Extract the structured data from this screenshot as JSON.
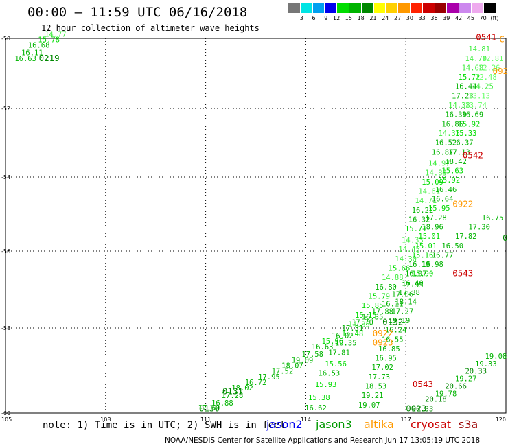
{
  "header": {
    "title": "00:00 – 11:59 UTC 06/16/2018",
    "subtitle": "12 hour collection of altimeter wave heights"
  },
  "colorbar": {
    "labels": [
      "3",
      "6",
      "9",
      "12",
      "15",
      "18",
      "21",
      "24",
      "27",
      "30",
      "33",
      "36",
      "39",
      "42",
      "45",
      "70",
      "(ft)"
    ],
    "colors": [
      "#777777",
      "#00e4e4",
      "#00a0f0",
      "#0000ee",
      "#00dd00",
      "#00b400",
      "#008800",
      "#ffff00",
      "#ffd000",
      "#ff9900",
      "#ff2200",
      "#cc0000",
      "#990000",
      "#aa00aa",
      "#cc88ee",
      "#eeaaee",
      "#000000"
    ]
  },
  "footer": {
    "note": "note: 1) Time is in UTC; 2) SWH is in feet",
    "satellites": [
      {
        "name": "jason2",
        "color": "#0000ee"
      },
      {
        "name": "jason3",
        "color": "#009900"
      },
      {
        "name": "altika",
        "color": "#ff9900"
      },
      {
        "name": "cryosat",
        "color": "#cc0000"
      },
      {
        "name": "s3a",
        "color": "#990000"
      }
    ],
    "credit": "NOAA/NESDIS Center for Satellite Applications and Research  Jun 17 13:05:19 UTC 2018"
  },
  "chart_data": {
    "type": "scatter",
    "title": "00:00 – 11:59 UTC 06/16/2018",
    "subtitle": "12 hour collection of altimeter wave heights",
    "xlim": [
      105,
      120
    ],
    "ylim": [
      -60,
      -50
    ],
    "x_ticks": [
      "105",
      "108",
      "111",
      "114",
      "117",
      "120"
    ],
    "y_ticks": [
      "-50",
      "-52",
      "-54",
      "-56",
      "-58",
      "-60"
    ],
    "grid": true,
    "points": [
      {
        "x": 105.6,
        "y": -50.6,
        "v": "16.63",
        "c": "#00b400"
      },
      {
        "x": 105.8,
        "y": -50.45,
        "v": "16.11",
        "c": "#00b400"
      },
      {
        "x": 106.0,
        "y": -50.25,
        "v": "16.68",
        "c": "#00b400"
      },
      {
        "x": 106.3,
        "y": -50.1,
        "v": "15.78",
        "c": "#00dd00"
      },
      {
        "x": 106.5,
        "y": -49.95,
        "v": "14.77",
        "c": "#44ee44"
      },
      {
        "x": 111.1,
        "y": -59.93,
        "v": "17.60",
        "c": "#00b400"
      },
      {
        "x": 111.5,
        "y": -59.8,
        "v": "16.88",
        "c": "#00b400"
      },
      {
        "x": 111.8,
        "y": -59.6,
        "v": "17.28",
        "c": "#00b400"
      },
      {
        "x": 112.1,
        "y": -59.4,
        "v": "18.02",
        "c": "#00b400"
      },
      {
        "x": 112.5,
        "y": -59.25,
        "v": "16.72",
        "c": "#00b400"
      },
      {
        "x": 112.9,
        "y": -59.1,
        "v": "17.95",
        "c": "#00b400"
      },
      {
        "x": 113.3,
        "y": -58.95,
        "v": "17.52",
        "c": "#00b400"
      },
      {
        "x": 113.6,
        "y": -58.8,
        "v": "18.07",
        "c": "#00b400"
      },
      {
        "x": 113.9,
        "y": -58.65,
        "v": "19.09",
        "c": "#00b400"
      },
      {
        "x": 114.2,
        "y": -58.5,
        "v": "17.58",
        "c": "#00b400"
      },
      {
        "x": 114.5,
        "y": -58.3,
        "v": "16.63",
        "c": "#00b400"
      },
      {
        "x": 114.8,
        "y": -58.15,
        "v": "15.96",
        "c": "#00dd00"
      },
      {
        "x": 115.1,
        "y": -58.0,
        "v": "16.02",
        "c": "#00b400"
      },
      {
        "x": 115.4,
        "y": -57.8,
        "v": "17.31",
        "c": "#00b400"
      },
      {
        "x": 115.7,
        "y": -57.65,
        "v": "17.70",
        "c": "#00b400"
      },
      {
        "x": 116.0,
        "y": -57.5,
        "v": "16.35",
        "c": "#00b400"
      },
      {
        "x": 116.3,
        "y": -57.35,
        "v": "17.88",
        "c": "#00b400"
      },
      {
        "x": 116.6,
        "y": -57.15,
        "v": "16.11",
        "c": "#00b400"
      },
      {
        "x": 116.9,
        "y": -56.9,
        "v": "17.06",
        "c": "#00b400"
      },
      {
        "x": 117.2,
        "y": -56.65,
        "v": "17.95",
        "c": "#00b400"
      },
      {
        "x": 117.5,
        "y": -56.35,
        "v": "15.90",
        "c": "#00dd00"
      },
      {
        "x": 117.8,
        "y": -56.1,
        "v": "16.98",
        "c": "#00b400"
      },
      {
        "x": 118.1,
        "y": -55.85,
        "v": "16.77",
        "c": "#00b400"
      },
      {
        "x": 118.4,
        "y": -55.6,
        "v": "16.50",
        "c": "#00b400"
      },
      {
        "x": 118.8,
        "y": -55.35,
        "v": "17.82",
        "c": "#00b400"
      },
      {
        "x": 119.2,
        "y": -55.1,
        "v": "17.30",
        "c": "#00b400"
      },
      {
        "x": 119.6,
        "y": -54.85,
        "v": "16.75",
        "c": "#00b400"
      },
      {
        "x": 114.3,
        "y": -59.93,
        "v": "16.62",
        "c": "#00b400"
      },
      {
        "x": 114.4,
        "y": -59.65,
        "v": "15.38",
        "c": "#00dd00"
      },
      {
        "x": 114.6,
        "y": -59.3,
        "v": "15.93",
        "c": "#00dd00"
      },
      {
        "x": 114.7,
        "y": -59.0,
        "v": "16.53",
        "c": "#00b400"
      },
      {
        "x": 114.9,
        "y": -58.75,
        "v": "15.56",
        "c": "#00dd00"
      },
      {
        "x": 115.0,
        "y": -58.45,
        "v": "17.81",
        "c": "#00b400"
      },
      {
        "x": 115.2,
        "y": -58.2,
        "v": "16.35",
        "c": "#00b400"
      },
      {
        "x": 115.4,
        "y": -57.95,
        "v": "15.48",
        "c": "#00dd00"
      },
      {
        "x": 115.6,
        "y": -57.7,
        "v": "14.35",
        "c": "#44ee44"
      },
      {
        "x": 115.8,
        "y": -57.45,
        "v": "15.15",
        "c": "#00dd00"
      },
      {
        "x": 116.0,
        "y": -57.2,
        "v": "15.85",
        "c": "#00dd00"
      },
      {
        "x": 116.2,
        "y": -56.95,
        "v": "15.79",
        "c": "#00dd00"
      },
      {
        "x": 116.4,
        "y": -56.7,
        "v": "16.80",
        "c": "#00b400"
      },
      {
        "x": 116.6,
        "y": -56.45,
        "v": "14.88",
        "c": "#44ee44"
      },
      {
        "x": 116.8,
        "y": -56.2,
        "v": "15.66",
        "c": "#00dd00"
      },
      {
        "x": 117.0,
        "y": -55.95,
        "v": "14.30",
        "c": "#44ee44"
      },
      {
        "x": 117.1,
        "y": -55.7,
        "v": "14.45",
        "c": "#44ee44"
      },
      {
        "x": 117.2,
        "y": -55.45,
        "v": "14.33",
        "c": "#44ee44"
      },
      {
        "x": 117.3,
        "y": -55.15,
        "v": "15.71",
        "c": "#00dd00"
      },
      {
        "x": 117.4,
        "y": -54.9,
        "v": "16.32",
        "c": "#00b400"
      },
      {
        "x": 117.5,
        "y": -54.65,
        "v": "16.22",
        "c": "#00b400"
      },
      {
        "x": 117.6,
        "y": -54.4,
        "v": "14.71",
        "c": "#44ee44"
      },
      {
        "x": 117.7,
        "y": -54.15,
        "v": "14.61",
        "c": "#44ee44"
      },
      {
        "x": 117.8,
        "y": -53.9,
        "v": "15.09",
        "c": "#00dd00"
      },
      {
        "x": 117.9,
        "y": -53.65,
        "v": "14.83",
        "c": "#44ee44"
      },
      {
        "x": 118.0,
        "y": -53.4,
        "v": "14.97",
        "c": "#44ee44"
      },
      {
        "x": 118.1,
        "y": -53.1,
        "v": "16.87",
        "c": "#00b400"
      },
      {
        "x": 118.2,
        "y": -52.85,
        "v": "16.52",
        "c": "#00b400"
      },
      {
        "x": 118.3,
        "y": -52.6,
        "v": "14.33",
        "c": "#44ee44"
      },
      {
        "x": 118.4,
        "y": -52.35,
        "v": "16.86",
        "c": "#00b400"
      },
      {
        "x": 118.5,
        "y": -52.1,
        "v": "16.39",
        "c": "#00b400"
      },
      {
        "x": 118.6,
        "y": -51.85,
        "v": "14.38",
        "c": "#44ee44"
      },
      {
        "x": 118.7,
        "y": -51.6,
        "v": "17.23",
        "c": "#00b400"
      },
      {
        "x": 118.8,
        "y": -51.35,
        "v": "16.44",
        "c": "#00b400"
      },
      {
        "x": 118.9,
        "y": -51.1,
        "v": "15.72",
        "c": "#00dd00"
      },
      {
        "x": 119.0,
        "y": -50.85,
        "v": "14.68",
        "c": "#44ee44"
      },
      {
        "x": 119.1,
        "y": -50.6,
        "v": "14.70",
        "c": "#44ee44"
      },
      {
        "x": 119.2,
        "y": -50.35,
        "v": "14.81",
        "c": "#44ee44"
      },
      {
        "x": 119.6,
        "y": -50.6,
        "v": "12.81",
        "c": "#66ff66"
      },
      {
        "x": 119.5,
        "y": -50.85,
        "v": "12.26",
        "c": "#66ff66"
      },
      {
        "x": 119.4,
        "y": -51.1,
        "v": "12.48",
        "c": "#66ff66"
      },
      {
        "x": 119.3,
        "y": -51.35,
        "v": "14.25",
        "c": "#44ee44"
      },
      {
        "x": 119.2,
        "y": -51.6,
        "v": "13.13",
        "c": "#66ff66"
      },
      {
        "x": 119.1,
        "y": -51.85,
        "v": "13.74",
        "c": "#66ff66"
      },
      {
        "x": 119.0,
        "y": -52.1,
        "v": "16.69",
        "c": "#00b400"
      },
      {
        "x": 118.9,
        "y": -52.35,
        "v": "15.92",
        "c": "#00dd00"
      },
      {
        "x": 118.8,
        "y": -52.6,
        "v": "15.33",
        "c": "#00dd00"
      },
      {
        "x": 118.7,
        "y": -52.85,
        "v": "16.37",
        "c": "#00b400"
      },
      {
        "x": 118.6,
        "y": -53.1,
        "v": "17.13",
        "c": "#00b400"
      },
      {
        "x": 118.5,
        "y": -53.35,
        "v": "18.42",
        "c": "#00b400"
      },
      {
        "x": 118.4,
        "y": -53.6,
        "v": "15.63",
        "c": "#00dd00"
      },
      {
        "x": 118.3,
        "y": -53.85,
        "v": "15.92",
        "c": "#00dd00"
      },
      {
        "x": 118.2,
        "y": -54.1,
        "v": "16.46",
        "c": "#00b400"
      },
      {
        "x": 118.1,
        "y": -54.35,
        "v": "16.64",
        "c": "#00b400"
      },
      {
        "x": 118.0,
        "y": -54.6,
        "v": "15.95",
        "c": "#00dd00"
      },
      {
        "x": 117.9,
        "y": -54.85,
        "v": "17.28",
        "c": "#00b400"
      },
      {
        "x": 117.8,
        "y": -55.1,
        "v": "18.96",
        "c": "#00b400"
      },
      {
        "x": 117.7,
        "y": -55.35,
        "v": "15.01",
        "c": "#00dd00"
      },
      {
        "x": 117.6,
        "y": -55.6,
        "v": "15.01",
        "c": "#00dd00"
      },
      {
        "x": 117.5,
        "y": -55.85,
        "v": "15.16",
        "c": "#00dd00"
      },
      {
        "x": 117.4,
        "y": -56.1,
        "v": "16.19",
        "c": "#00b400"
      },
      {
        "x": 117.3,
        "y": -56.35,
        "v": "16.07",
        "c": "#00b400"
      },
      {
        "x": 117.2,
        "y": -56.6,
        "v": "16.40",
        "c": "#00b400"
      },
      {
        "x": 117.1,
        "y": -56.85,
        "v": "17.38",
        "c": "#00b400"
      },
      {
        "x": 117.0,
        "y": -57.1,
        "v": "18.14",
        "c": "#00b400"
      },
      {
        "x": 116.9,
        "y": -57.35,
        "v": "17.27",
        "c": "#00b400"
      },
      {
        "x": 116.8,
        "y": -57.6,
        "v": "19.19",
        "c": "#00b400"
      },
      {
        "x": 116.7,
        "y": -57.85,
        "v": "16.24",
        "c": "#00b400"
      },
      {
        "x": 116.6,
        "y": -58.1,
        "v": "16.55",
        "c": "#00b400"
      },
      {
        "x": 116.5,
        "y": -58.35,
        "v": "16.85",
        "c": "#00b400"
      },
      {
        "x": 116.4,
        "y": -58.6,
        "v": "16.95",
        "c": "#00b400"
      },
      {
        "x": 116.3,
        "y": -58.85,
        "v": "17.02",
        "c": "#00b400"
      },
      {
        "x": 116.2,
        "y": -59.1,
        "v": "17.73",
        "c": "#00b400"
      },
      {
        "x": 116.1,
        "y": -59.35,
        "v": "18.53",
        "c": "#00b400"
      },
      {
        "x": 116.0,
        "y": -59.6,
        "v": "19.21",
        "c": "#00b400"
      },
      {
        "x": 115.9,
        "y": -59.85,
        "v": "19.07",
        "c": "#00b400"
      },
      {
        "x": 117.5,
        "y": -59.95,
        "v": "20.33",
        "c": "#008800"
      },
      {
        "x": 117.9,
        "y": -59.7,
        "v": "20.18",
        "c": "#008800"
      },
      {
        "x": 118.2,
        "y": -59.55,
        "v": "19.78",
        "c": "#00b400"
      },
      {
        "x": 118.5,
        "y": -59.35,
        "v": "20.66",
        "c": "#008800"
      },
      {
        "x": 118.8,
        "y": -59.15,
        "v": "19.27",
        "c": "#00b400"
      },
      {
        "x": 119.1,
        "y": -58.95,
        "v": "20.33",
        "c": "#008800"
      },
      {
        "x": 119.4,
        "y": -58.75,
        "v": "19.33",
        "c": "#00b400"
      },
      {
        "x": 119.7,
        "y": -58.55,
        "v": "19.08",
        "c": "#00b400"
      }
    ],
    "pass_labels": [
      {
        "x": 106.0,
        "y": -50.6,
        "t": "0219",
        "c": "#008800"
      },
      {
        "x": 111.5,
        "y": -59.5,
        "t": "0131",
        "c": "#008800"
      },
      {
        "x": 110.8,
        "y": -59.95,
        "t": "0130",
        "c": "#008800"
      },
      {
        "x": 116.3,
        "y": -57.65,
        "t": "0132",
        "c": "#008800"
      },
      {
        "x": 117.0,
        "y": -59.95,
        "t": "0023",
        "c": "#008800"
      },
      {
        "x": 119.9,
        "y": -55.4,
        "t": "01",
        "c": "#008800"
      },
      {
        "x": 118.4,
        "y": -54.5,
        "t": "0922",
        "c": "#ff9900"
      },
      {
        "x": 116.0,
        "y": -57.95,
        "t": "0922",
        "c": "#ff9900"
      },
      {
        "x": 116.0,
        "y": -58.2,
        "t": "0923",
        "c": "#ff9900"
      },
      {
        "x": 119.6,
        "y": -50.95,
        "t": "092",
        "c": "#ff9900"
      },
      {
        "x": 119.8,
        "y": -50.1,
        "t": "C",
        "c": "#ff9900"
      },
      {
        "x": 119.1,
        "y": -50.05,
        "t": "0541",
        "c": "#cc0000"
      },
      {
        "x": 118.7,
        "y": -53.2,
        "t": "0542",
        "c": "#cc0000"
      },
      {
        "x": 118.4,
        "y": -56.35,
        "t": "0543",
        "c": "#cc0000"
      },
      {
        "x": 117.2,
        "y": -59.3,
        "t": "0543",
        "c": "#cc0000"
      }
    ]
  }
}
